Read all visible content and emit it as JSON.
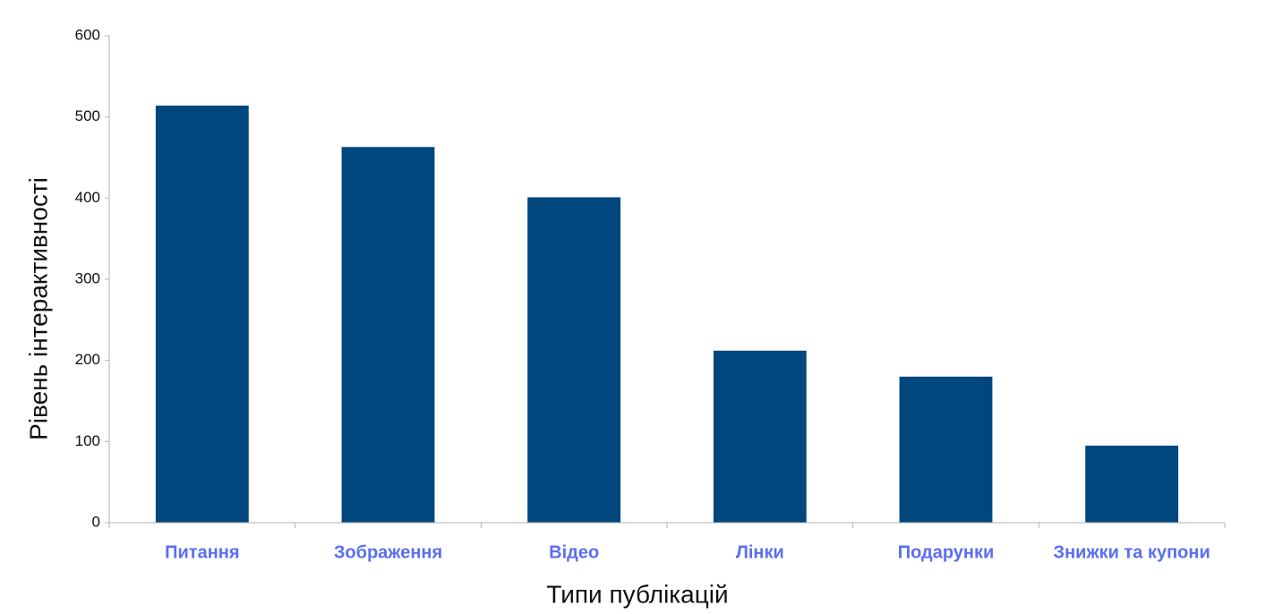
{
  "chart_data": {
    "type": "bar",
    "x_label": "Типи публікацій",
    "y_label": "Рівень інтерактивності",
    "categories": [
      "Питання",
      "Зображення",
      "Відео",
      "Лінки",
      "Подарунки",
      "Знижки та купони"
    ],
    "values": [
      514,
      463,
      401,
      212,
      180,
      95
    ],
    "color": "#00467f",
    "ylim": [
      0,
      600
    ],
    "yticks": [
      0,
      100,
      200,
      300,
      400,
      500,
      600
    ],
    "grid": false
  }
}
